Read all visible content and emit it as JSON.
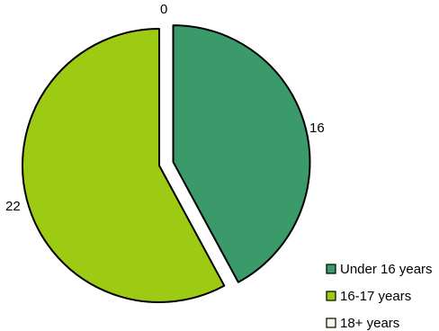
{
  "chart_data": {
    "type": "pie",
    "title": "",
    "categories": [
      "Under 16 years",
      "16-17 years",
      "18+ years"
    ],
    "values": [
      16,
      22,
      0
    ],
    "colors": [
      "#3a9a6a",
      "#9dca12",
      "#f4fbea"
    ],
    "slice_outline_color": "#000000",
    "exploded_slice": "Under 16 years",
    "data_labels": [
      "16",
      "22",
      "0"
    ],
    "legend_position": "bottom-right"
  }
}
